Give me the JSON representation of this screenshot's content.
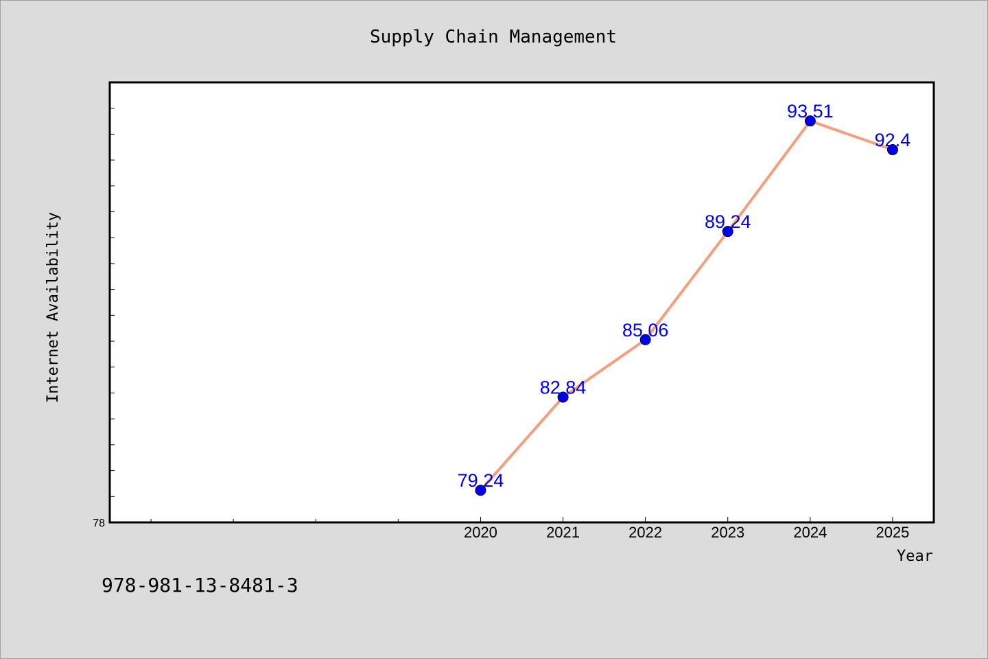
{
  "chart_data": {
    "type": "line",
    "title": "Supply Chain Management",
    "xlabel": "Year",
    "ylabel": "Internet Availability",
    "categories": [
      "2020",
      "2021",
      "2022",
      "2023",
      "2024",
      "2025"
    ],
    "series": [
      {
        "values": [
          79.24,
          82.84,
          85.06,
          89.24,
          93.51,
          92.4
        ]
      }
    ],
    "data_labels": [
      "79.24",
      "82.84",
      "85.06",
      "89.24",
      "93.51",
      "92.4"
    ],
    "ytick_labels": [
      "78"
    ],
    "ylim": [
      78,
      95
    ],
    "y_minor_step": 1,
    "x_total_slots": 10,
    "x_first_category_slot": 4,
    "grid": false,
    "line_color": "#f4a07e",
    "marker_color": "#0000ee",
    "label_color": "#0000ee"
  },
  "footnote": "978-981-13-8481-3"
}
